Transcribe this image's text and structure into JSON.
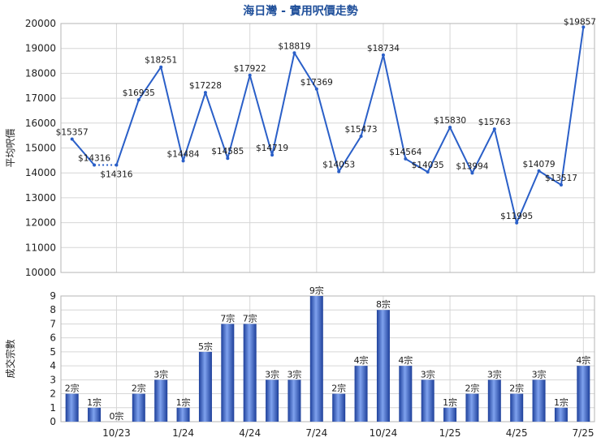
{
  "chart_data": [
    {
      "type": "line",
      "title": "海日灣 - 實用呎價走勢",
      "ylabel": "平均呎價",
      "ylim": [
        10000,
        20000
      ],
      "yticks": [
        10000,
        11000,
        12000,
        13000,
        14000,
        15000,
        16000,
        17000,
        18000,
        19000,
        20000
      ],
      "x_tick_labels": [
        "10/23",
        "1/24",
        "4/24",
        "7/24",
        "10/24",
        "1/25",
        "4/25",
        "7/25"
      ],
      "grid": true,
      "series": [
        {
          "values": [
            15357,
            14316,
            14316,
            16935,
            18251,
            14484,
            17228,
            14585,
            17922,
            14719,
            18819,
            17369,
            14053,
            15473,
            18734,
            14564,
            14035,
            15830,
            13994,
            15763,
            11995,
            14079,
            13517,
            19857
          ],
          "labels": [
            "$15357",
            "$14316",
            "$14316",
            "$16935",
            "$18251",
            "$14484",
            "$17228",
            "$14585",
            "$17922",
            "$14719",
            "$18819",
            "$17369",
            "$14053",
            "$15473",
            "$18734",
            "$14564",
            "$14035",
            "$15830",
            "$13994",
            "$15763",
            "$11995",
            "$14079",
            "$13517",
            "$19857"
          ],
          "dotted_segments": [
            [
              1,
              2
            ]
          ]
        }
      ],
      "color": "#2a5fc8"
    },
    {
      "type": "bar",
      "ylabel": "成交宗數",
      "ylim": [
        0,
        9
      ],
      "yticks": [
        0,
        1,
        2,
        3,
        4,
        5,
        6,
        7,
        8,
        9
      ],
      "x_tick_labels": [
        "10/23",
        "1/24",
        "4/24",
        "7/24",
        "10/24",
        "1/25",
        "4/25",
        "7/25"
      ],
      "grid": true,
      "values": [
        2,
        1,
        0,
        2,
        3,
        1,
        5,
        7,
        7,
        3,
        3,
        9,
        2,
        4,
        8,
        4,
        3,
        1,
        2,
        3,
        2,
        3,
        1,
        4
      ],
      "labels": [
        "2宗",
        "1宗",
        "0宗",
        "2宗",
        "3宗",
        "1宗",
        "5宗",
        "7宗",
        "7宗",
        "3宗",
        "3宗",
        "9宗",
        "2宗",
        "4宗",
        "8宗",
        "4宗",
        "3宗",
        "1宗",
        "2宗",
        "3宗",
        "2宗",
        "3宗",
        "1宗",
        "4宗"
      ],
      "color": "#3a64c8"
    }
  ]
}
